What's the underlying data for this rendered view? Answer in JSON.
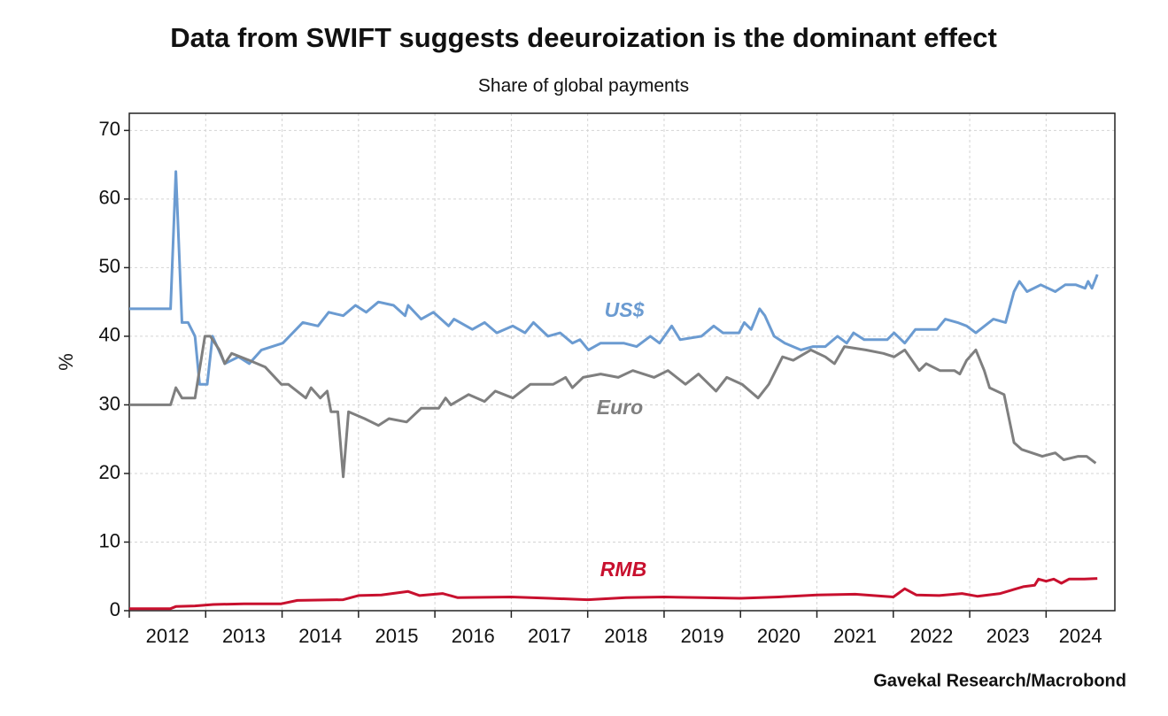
{
  "chart_data": {
    "type": "line",
    "title": "Data from SWIFT suggests deeuroization is the dominant effect",
    "subtitle": "Share of global payments",
    "y_label": "%",
    "source": "Gavekal Research/Macrobond",
    "xlim": [
      2012,
      2024.9
    ],
    "xticks": [
      2012,
      2013,
      2014,
      2015,
      2016,
      2017,
      2018,
      2019,
      2020,
      2021,
      2022,
      2023,
      2024
    ],
    "ylim": [
      0,
      72.5
    ],
    "yticks": [
      0,
      10,
      20,
      30,
      40,
      50,
      60,
      70
    ],
    "grid": true,
    "series": [
      {
        "name": "US$",
        "color": "#6b9bd1",
        "x": [
          2012,
          2012.54,
          2012.61,
          2012.69,
          2012.77,
          2012.86,
          2012.92,
          2013.02,
          2013.09,
          2013.25,
          2013.43,
          2013.57,
          2013.73,
          2014.01,
          2014.27,
          2014.47,
          2014.61,
          2014.8,
          2014.96,
          2015.1,
          2015.26,
          2015.46,
          2015.61,
          2015.65,
          2015.82,
          2015.98,
          2016.18,
          2016.25,
          2016.49,
          2016.65,
          2016.81,
          2017.02,
          2017.18,
          2017.29,
          2017.48,
          2017.64,
          2017.8,
          2017.9,
          2018.01,
          2018.17,
          2018.47,
          2018.64,
          2018.82,
          2018.94,
          2019.1,
          2019.21,
          2019.49,
          2019.65,
          2019.77,
          2019.98,
          2020.05,
          2020.14,
          2020.25,
          2020.32,
          2020.44,
          2020.58,
          2020.79,
          2020.95,
          2021.11,
          2021.27,
          2021.39,
          2021.48,
          2021.62,
          2021.92,
          2022.01,
          2022.15,
          2022.29,
          2022.57,
          2022.68,
          2022.84,
          2022.96,
          2023.08,
          2023.31,
          2023.47,
          2023.58,
          2023.65,
          2023.75,
          2023.93,
          2024.12,
          2024.25,
          2024.39,
          2024.51,
          2024.55,
          2024.6,
          2024.67
        ],
        "values": [
          44,
          44,
          64,
          42,
          42,
          40,
          33,
          33,
          40,
          36,
          37,
          36,
          38,
          39,
          42,
          41.5,
          43.5,
          43,
          44.5,
          43.5,
          45,
          44.5,
          43,
          44.5,
          42.5,
          43.5,
          41.5,
          42.5,
          41,
          42,
          40.5,
          41.5,
          40.5,
          42,
          40,
          40.5,
          39,
          39.5,
          38,
          39,
          39,
          38.5,
          40,
          39,
          41.5,
          39.5,
          40,
          41.5,
          40.5,
          40.5,
          42,
          41,
          44,
          43,
          40,
          39,
          38,
          38.5,
          38.5,
          40,
          39,
          40.5,
          39.5,
          39.5,
          40.5,
          39,
          41,
          41,
          42.5,
          42,
          41.5,
          40.5,
          42.5,
          42,
          46.5,
          48,
          46.5,
          47.5,
          46.5,
          47.5,
          47.5,
          47,
          48,
          47,
          49
        ]
      },
      {
        "name": "Euro",
        "color": "#7f7f7f",
        "x": [
          2012,
          2012.54,
          2012.61,
          2012.69,
          2012.86,
          2012.99,
          2013.06,
          2013.18,
          2013.25,
          2013.34,
          2013.57,
          2013.78,
          2013.99,
          2014.08,
          2014.31,
          2014.38,
          2014.5,
          2014.59,
          2014.64,
          2014.73,
          2014.8,
          2014.87,
          2015.08,
          2015.26,
          2015.4,
          2015.63,
          2015.82,
          2016.05,
          2016.14,
          2016.21,
          2016.44,
          2016.65,
          2016.79,
          2017.02,
          2017.25,
          2017.55,
          2017.71,
          2017.8,
          2017.94,
          2018.17,
          2018.4,
          2018.59,
          2018.87,
          2019.05,
          2019.28,
          2019.45,
          2019.68,
          2019.82,
          2020.02,
          2020.23,
          2020.37,
          2020.55,
          2020.69,
          2020.92,
          2021.11,
          2021.23,
          2021.36,
          2021.64,
          2021.87,
          2022.01,
          2022.15,
          2022.34,
          2022.43,
          2022.61,
          2022.8,
          2022.87,
          2022.96,
          2023.08,
          2023.19,
          2023.26,
          2023.45,
          2023.58,
          2023.68,
          2023.95,
          2024.12,
          2024.23,
          2024.42,
          2024.53,
          2024.65
        ],
        "values": [
          30,
          30,
          32.5,
          31,
          31,
          40,
          40,
          38,
          36,
          37.5,
          36.5,
          35.5,
          33,
          33,
          31,
          32.5,
          31,
          32,
          29,
          29,
          19.5,
          29,
          28,
          27,
          28,
          27.5,
          29.5,
          29.5,
          31,
          30,
          31.5,
          30.5,
          32,
          31,
          33,
          33,
          34,
          32.5,
          34,
          34.5,
          34,
          35,
          34,
          35,
          33,
          34.5,
          32,
          34,
          33,
          31,
          33,
          37,
          36.5,
          38,
          37,
          36,
          38.5,
          38,
          37.5,
          37,
          38,
          35,
          36,
          35,
          35,
          34.5,
          36.5,
          38,
          35,
          32.5,
          31.5,
          24.5,
          23.5,
          22.5,
          23,
          22,
          22.5,
          22.5,
          21.5
        ]
      },
      {
        "name": "RMB",
        "color": "#c8102e",
        "x": [
          2012,
          2012.54,
          2012.61,
          2012.86,
          2013.1,
          2013.5,
          2013.99,
          2014.2,
          2014.8,
          2015,
          2015.3,
          2015.65,
          2015.8,
          2016.1,
          2016.3,
          2017,
          2017.5,
          2018,
          2018.5,
          2019,
          2019.5,
          2020,
          2020.5,
          2021,
          2021.5,
          2022,
          2022.15,
          2022.3,
          2022.6,
          2022.9,
          2023.1,
          2023.4,
          2023.7,
          2023.85,
          2023.9,
          2024,
          2024.1,
          2024.2,
          2024.3,
          2024.5,
          2024.67
        ],
        "values": [
          0.3,
          0.3,
          0.6,
          0.7,
          0.9,
          1,
          1,
          1.5,
          1.6,
          2.2,
          2.3,
          2.8,
          2.2,
          2.5,
          1.9,
          2,
          1.8,
          1.6,
          1.9,
          2,
          1.9,
          1.8,
          2,
          2.3,
          2.4,
          2,
          3.2,
          2.3,
          2.2,
          2.5,
          2.1,
          2.5,
          3.5,
          3.7,
          4.6,
          4.3,
          4.6,
          4,
          4.6,
          4.6,
          4.7
        ]
      }
    ]
  }
}
